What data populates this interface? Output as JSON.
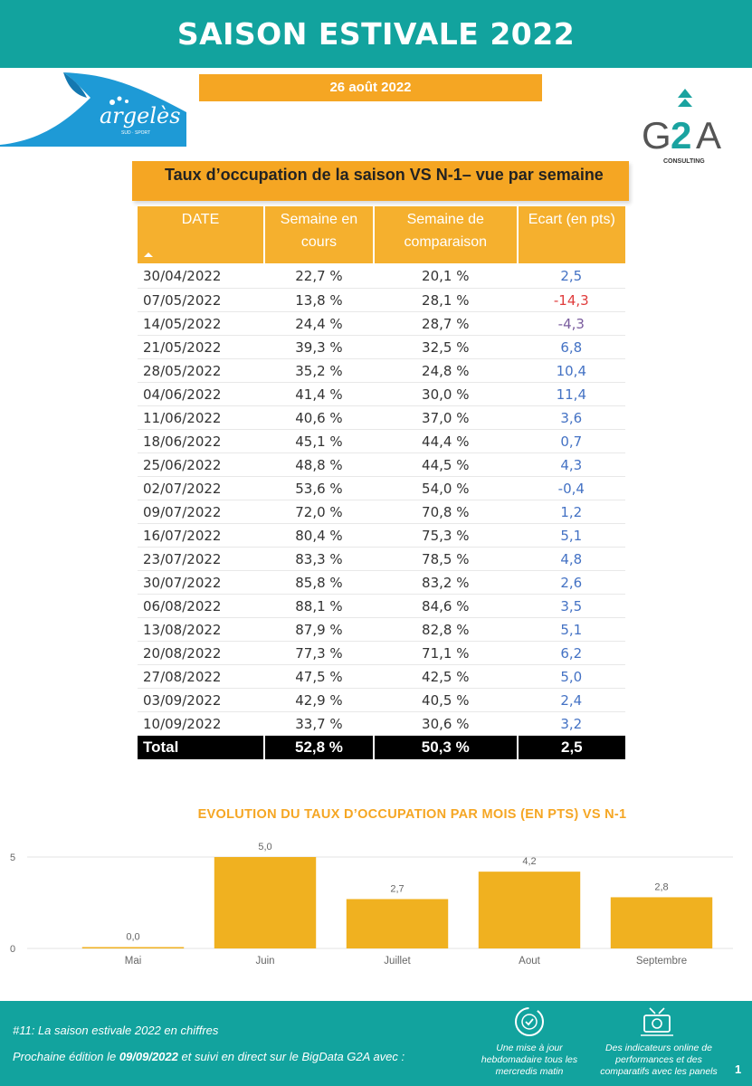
{
  "header": {
    "title": "SAISON ESTIVALE 2022"
  },
  "date_label": "26 août 2022",
  "logos": {
    "left_brand": "argelès",
    "left_tagline": "SUD · SPORT",
    "right_brand_g": "G",
    "right_brand_2": "2",
    "right_brand_a": "A",
    "right_sub": "CONSULTING"
  },
  "table_title": "Taux d’occupation de la saison  VS N-1– vue par semaine",
  "table": {
    "headers": [
      "DATE",
      "Semaine en cours",
      "Semaine de comparaison",
      "Ecart (en pts)"
    ],
    "rows": [
      [
        "30/04/2022",
        "22,7 %",
        "20,1 %",
        "2,5"
      ],
      [
        "07/05/2022",
        "13,8 %",
        "28,1 %",
        "-14,3"
      ],
      [
        "14/05/2022",
        "24,4 %",
        "28,7 %",
        "-4,3"
      ],
      [
        "21/05/2022",
        "39,3 %",
        "32,5 %",
        "6,8"
      ],
      [
        "28/05/2022",
        "35,2 %",
        "24,8 %",
        "10,4"
      ],
      [
        "04/06/2022",
        "41,4 %",
        "30,0 %",
        "11,4"
      ],
      [
        "11/06/2022",
        "40,6 %",
        "37,0 %",
        "3,6"
      ],
      [
        "18/06/2022",
        "45,1 %",
        "44,4 %",
        "0,7"
      ],
      [
        "25/06/2022",
        "48,8 %",
        "44,5 %",
        "4,3"
      ],
      [
        "02/07/2022",
        "53,6 %",
        "54,0 %",
        "-0,4"
      ],
      [
        "09/07/2022",
        "72,0 %",
        "70,8 %",
        "1,2"
      ],
      [
        "16/07/2022",
        "80,4 %",
        "75,3 %",
        "5,1"
      ],
      [
        "23/07/2022",
        "83,3 %",
        "78,5 %",
        "4,8"
      ],
      [
        "30/07/2022",
        "85,8 %",
        "83,2 %",
        "2,6"
      ],
      [
        "06/08/2022",
        "88,1 %",
        "84,6 %",
        "3,5"
      ],
      [
        "13/08/2022",
        "87,9 %",
        "82,8 %",
        "5,1"
      ],
      [
        "20/08/2022",
        "77,3 %",
        "71,1 %",
        "6,2"
      ],
      [
        "27/08/2022",
        "47,5 %",
        "42,5 %",
        "5,0"
      ],
      [
        "03/09/2022",
        "42,9 %",
        "40,5 %",
        "2,4"
      ],
      [
        "10/09/2022",
        "33,7 %",
        "30,6 %",
        "3,2"
      ]
    ],
    "total": [
      "Total",
      "52,8 %",
      "50,3 %",
      "2,5"
    ]
  },
  "chart_data": {
    "type": "bar",
    "title": "EVOLUTION DU TAUX D’OCCUPATION PAR MOIS (EN PTS)",
    "title_suffix": "VS N-1",
    "categories": [
      "Mai",
      "Juin",
      "Juillet",
      "Aout",
      "Septembre"
    ],
    "values": [
      0.0,
      5.0,
      2.7,
      4.2,
      2.8
    ],
    "value_labels": [
      "0,0",
      "5,0",
      "2,7",
      "4,2",
      "2,8"
    ],
    "ylim": [
      0,
      5
    ],
    "yticks": [
      0,
      5
    ],
    "grid": true,
    "bar_color": "#f0b120"
  },
  "footer": {
    "line1": "#11: La saison estivale 2022 en chiffres",
    "line2_prefix": "Prochaine édition le ",
    "line2_date": "09/09/2022",
    "line2_suffix": " et suivi en direct sur le BigData G2A avec :",
    "bullet1": "Une mise à jour hebdomadaire tous les mercredis matin",
    "bullet2": "Des indicateurs online de performances et des comparatifs avec les panels",
    "page": "1"
  },
  "colors": {
    "teal": "#12a39e",
    "orange": "#f5a623",
    "positive": "#4472c4",
    "negative": "#e03c3c"
  }
}
